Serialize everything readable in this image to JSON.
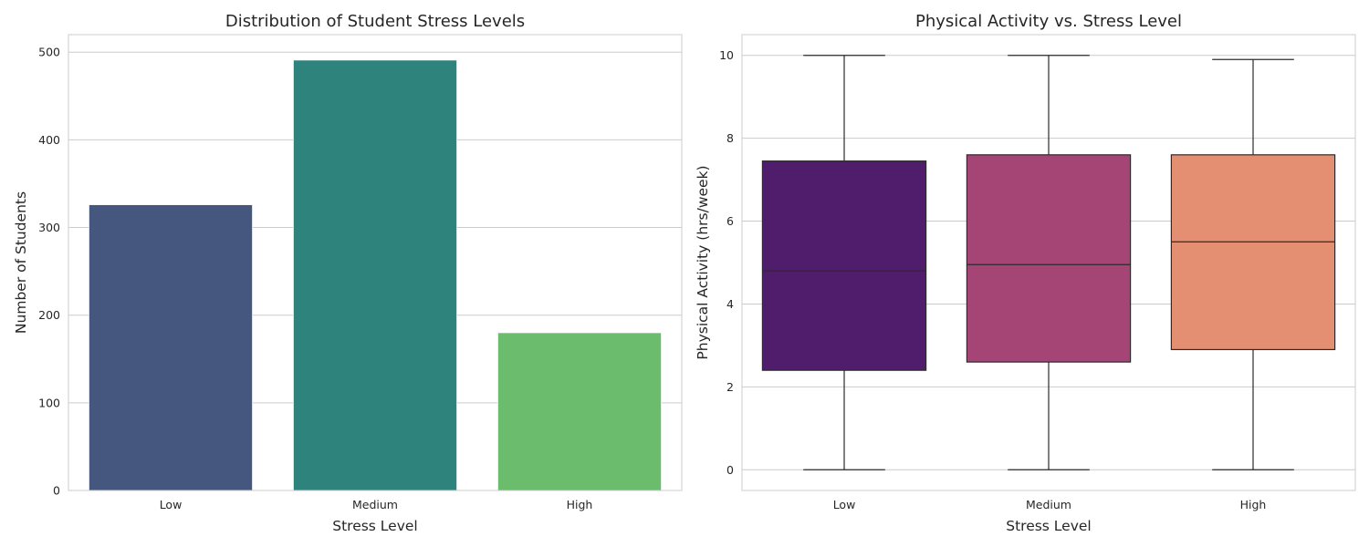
{
  "chart_data": [
    {
      "type": "bar",
      "title": "Distribution of Student Stress Levels",
      "xlabel": "Stress Level",
      "ylabel": "Number of Students",
      "categories": [
        "Low",
        "Medium",
        "High"
      ],
      "values": [
        326,
        491,
        180
      ],
      "colors": [
        "#46577f",
        "#2e837c",
        "#6cbc6d"
      ],
      "ylim": [
        0,
        520
      ],
      "yticks": [
        0,
        100,
        200,
        300,
        400,
        500
      ],
      "grid": "horizontal",
      "legend": "none"
    },
    {
      "type": "box",
      "title": "Physical Activity vs. Stress Level",
      "xlabel": "Stress Level",
      "ylabel": "Physical Activity (hrs/week)",
      "categories": [
        "Low",
        "Medium",
        "High"
      ],
      "boxes": [
        {
          "min": 0.0,
          "q1": 2.4,
          "median": 4.8,
          "q3": 7.45,
          "max": 10.0
        },
        {
          "min": 0.0,
          "q1": 2.6,
          "median": 4.95,
          "q3": 7.6,
          "max": 10.0
        },
        {
          "min": 0.0,
          "q1": 2.9,
          "median": 5.5,
          "q3": 7.6,
          "max": 9.9
        }
      ],
      "colors": [
        "#501d6d",
        "#a44576",
        "#e58f72"
      ],
      "ylim": [
        -0.5,
        10.5
      ],
      "yticks": [
        0,
        2,
        4,
        6,
        8,
        10
      ],
      "grid": "horizontal",
      "legend": "none"
    }
  ]
}
